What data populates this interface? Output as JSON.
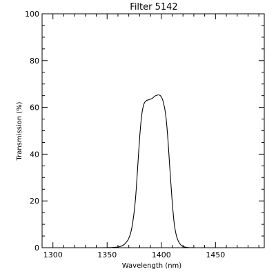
{
  "chart_data": {
    "type": "line",
    "title": "Filter 5142",
    "xlabel": "Wavelength (nm)",
    "ylabel": "Transmission (%)",
    "xlim": [
      1290,
      1495
    ],
    "ylim": [
      0,
      100
    ],
    "x_ticks": [
      1300,
      1350,
      1400,
      1450
    ],
    "x_tick_labels": [
      "1300",
      "1350",
      "1400",
      "1450"
    ],
    "y_ticks": [
      0,
      20,
      40,
      60,
      80,
      100
    ],
    "y_tick_labels": [
      "0",
      "20",
      "40",
      "60",
      "80",
      "100"
    ],
    "x_minor_step": 10,
    "y_minor_step": 5,
    "grid": false,
    "line_color": "#000000",
    "series": [
      {
        "x": [
          1290,
          1340,
          1355,
          1362,
          1366,
          1370,
          1373,
          1376,
          1378,
          1380,
          1382,
          1384,
          1386,
          1388,
          1390,
          1392,
          1394,
          1396,
          1398,
          1400,
          1402,
          1404,
          1406,
          1408,
          1410,
          1412,
          1414,
          1416,
          1418,
          1420,
          1424,
          1430,
          1440,
          1495
        ],
        "y": [
          0,
          0,
          0.1,
          0.5,
          1.5,
          4,
          9,
          20,
          33,
          47,
          57,
          61.5,
          62.8,
          63.2,
          63.5,
          64,
          64.8,
          65.2,
          65.3,
          64.5,
          62,
          57,
          47,
          33,
          20,
          10,
          5,
          2.5,
          1.2,
          0.5,
          0.1,
          0,
          0,
          0
        ]
      }
    ]
  }
}
